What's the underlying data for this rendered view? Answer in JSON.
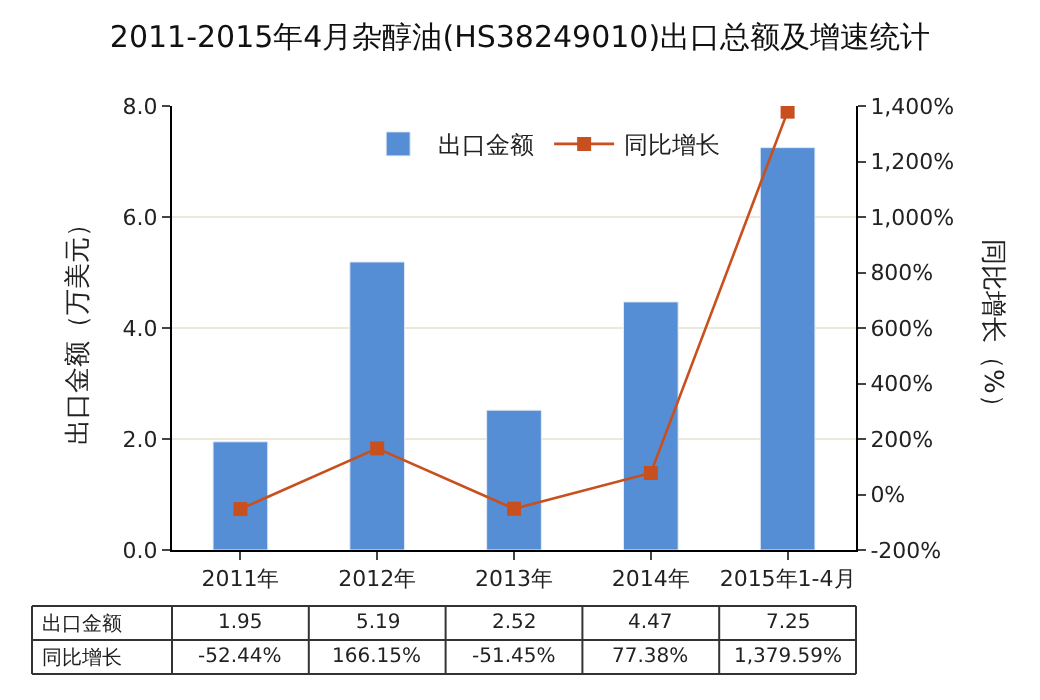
{
  "chart_data": {
    "type": "bar",
    "title": "2011-2015年4月杂醇油(HS38249010)出口总额及增速统计",
    "ylabel": "出口金额（万美元）",
    "y2label": "同比增长（%）",
    "categories": [
      "2011年",
      "2012年",
      "2013年",
      "2014年",
      "2015年1-4月"
    ],
    "series": [
      {
        "name": "出口金额",
        "color": "#558ed5",
        "values": [
          1.95,
          5.19,
          2.52,
          4.47,
          7.25
        ],
        "value_labels": [
          "1.95",
          "5.19",
          "2.52",
          "4.47",
          "7.25"
        ]
      },
      {
        "name": "同比增长",
        "type": "line",
        "axis": "y2",
        "color": "#c8501e",
        "values": [
          -52.44,
          166.15,
          -51.45,
          77.38,
          1379.59
        ],
        "value_labels": [
          "-52.44%",
          "166.15%",
          "-51.45%",
          "77.38%",
          "1,379.59%"
        ]
      }
    ],
    "ylim": [
      0,
      8
    ],
    "yticks": [
      {
        "value": 0,
        "label": "0.0"
      },
      {
        "value": 2,
        "label": "2.0"
      },
      {
        "value": 4,
        "label": "4.0"
      },
      {
        "value": 6,
        "label": "6.0"
      },
      {
        "value": 8,
        "label": "8.0"
      }
    ],
    "y2lim": [
      -200,
      1400
    ],
    "y2ticks": [
      {
        "value": -200,
        "label": "-200%"
      },
      {
        "value": 0,
        "label": "0%"
      },
      {
        "value": 200,
        "label": "200%"
      },
      {
        "value": 400,
        "label": "400%"
      },
      {
        "value": 600,
        "label": "600%"
      },
      {
        "value": 800,
        "label": "800%"
      },
      {
        "value": 1000,
        "label": "1,000%"
      },
      {
        "value": 1200,
        "label": "1,200%"
      },
      {
        "value": 1400,
        "label": "1,400%"
      }
    ],
    "grid": "y",
    "legend": "top right",
    "marker": "square",
    "line_style": "solid"
  }
}
